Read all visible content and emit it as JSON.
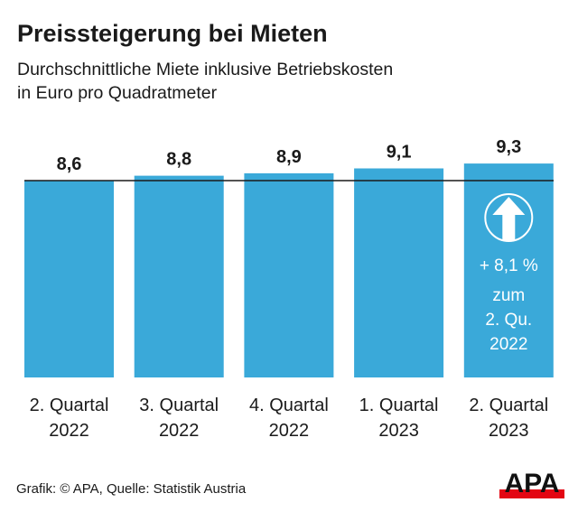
{
  "chart_data": {
    "type": "bar",
    "title": "Preissteigerung bei Mieten",
    "subtitle_lines": [
      "Durchschnittliche Miete inklusive Betriebskosten",
      "in Euro pro Quadratmeter"
    ],
    "categories": [
      [
        "2. Quartal",
        "2022"
      ],
      [
        "3. Quartal",
        "2022"
      ],
      [
        "4. Quartal",
        "2022"
      ],
      [
        "1. Quartal",
        "2023"
      ],
      [
        "2. Quartal",
        "2023"
      ]
    ],
    "values": [
      8.6,
      8.8,
      8.9,
      9.1,
      9.3
    ],
    "data_labels": [
      "8,6",
      "8,8",
      "8,9",
      "9,1",
      "9,3"
    ],
    "reference_line": 8.6,
    "axis_truncated": true,
    "grid": false,
    "annotation": {
      "icon": "arrow-up-circle-icon",
      "lines": [
        "+ 8,1 %",
        "zum",
        "2. Qu.",
        "2022"
      ]
    },
    "bar_color": "#3aa9d9",
    "line_color": "#1a1a1a"
  },
  "footer": {
    "source": "Grafik: © APA, Quelle: Statistik Austria",
    "logo": "APA",
    "logo_red": "#e30613"
  }
}
